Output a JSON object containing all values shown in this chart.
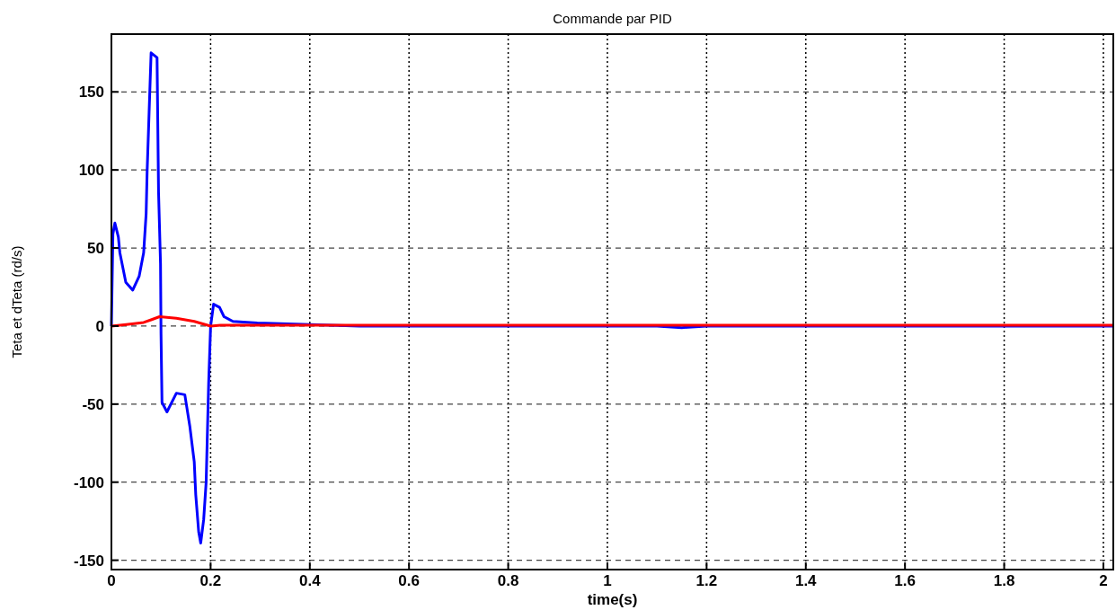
{
  "chart_data": {
    "type": "line",
    "title": "Commande par PID",
    "xlabel": "time(s)",
    "ylabel": "Teta et dTeta (rd/s)",
    "xlim": [
      0,
      2.02
    ],
    "ylim": [
      -156,
      187
    ],
    "xticks": [
      0,
      0.2,
      0.4,
      0.6,
      0.8,
      1,
      1.2,
      1.4,
      1.6,
      1.8,
      2
    ],
    "yticks": [
      -150,
      -100,
      -50,
      0,
      50,
      100,
      150
    ],
    "grid": true,
    "line_style": "solid",
    "series": [
      {
        "color": "#0000ff",
        "x": [
          0,
          0.001,
          0.003,
          0.007,
          0.014,
          0.017,
          0.029,
          0.043,
          0.056,
          0.065,
          0.07,
          0.072,
          0.076,
          0.08,
          0.092,
          0.095,
          0.099,
          0.1,
          0.102,
          0.112,
          0.131,
          0.148,
          0.158,
          0.167,
          0.17,
          0.176,
          0.18,
          0.186,
          0.191,
          0.196,
          0.2,
          0.206,
          0.218,
          0.227,
          0.245,
          0.294,
          0.4,
          0.5,
          1.1,
          1.15,
          1.2,
          2.02
        ],
        "values": [
          0,
          20,
          59,
          66,
          57,
          47,
          28,
          23,
          32,
          47,
          72,
          99,
          137,
          175,
          172,
          86,
          40,
          -5,
          -49,
          -55,
          -43,
          -44,
          -64,
          -87,
          -108,
          -132,
          -139,
          -124,
          -100,
          -37,
          0,
          14,
          12,
          6,
          3,
          2,
          1,
          0,
          0,
          -1,
          0,
          0
        ]
      },
      {
        "color": "#ff0000",
        "x": [
          0,
          0.03,
          0.065,
          0.08,
          0.097,
          0.131,
          0.167,
          0.2,
          0.22,
          0.3,
          2.02
        ],
        "values": [
          0,
          1,
          2.3,
          4,
          6,
          5,
          3,
          0,
          0.5,
          0.5,
          0.5
        ]
      }
    ]
  }
}
